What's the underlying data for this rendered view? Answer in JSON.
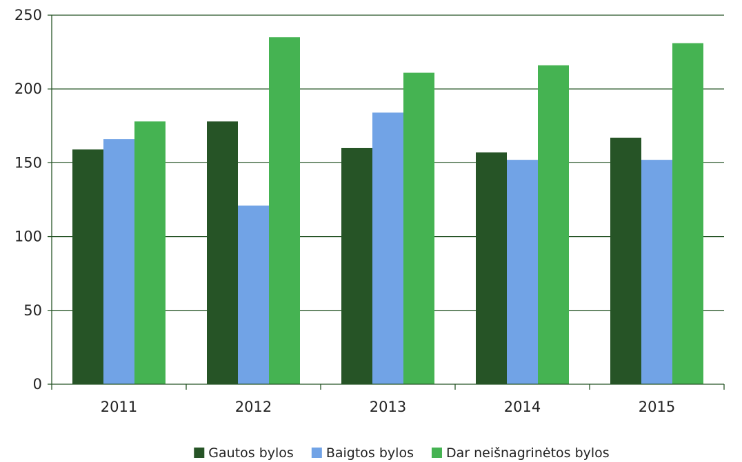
{
  "chart_data": {
    "type": "bar",
    "categories": [
      "2011",
      "2012",
      "2013",
      "2014",
      "2015"
    ],
    "series": [
      {
        "name": "Gautos bylos",
        "color": "#265426",
        "values": [
          159,
          178,
          160,
          157,
          167
        ]
      },
      {
        "name": "Baigtos bylos",
        "color": "#71a3e6",
        "values": [
          166,
          121,
          184,
          152,
          152
        ]
      },
      {
        "name": "Dar neišnagrinėtos bylos",
        "color": "#45b352",
        "values": [
          178,
          235,
          211,
          216,
          231
        ]
      }
    ],
    "ylim": [
      0,
      250
    ],
    "yticks": [
      0,
      50,
      100,
      150,
      200,
      250
    ],
    "grid": true,
    "grid_color": "#265426",
    "legend": "bottom-center"
  }
}
